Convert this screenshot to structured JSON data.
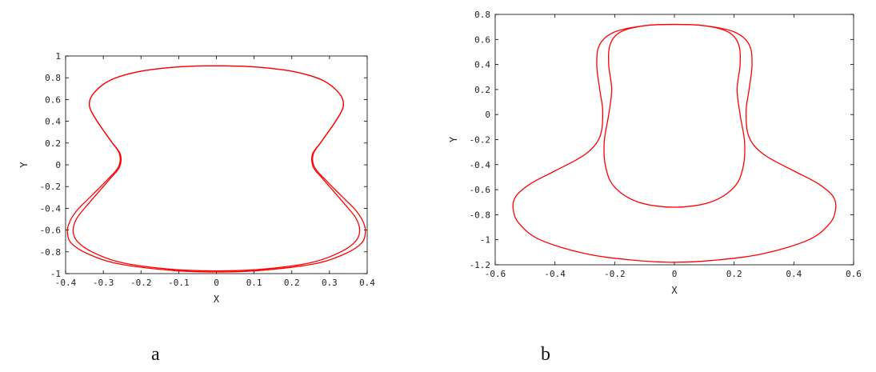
{
  "chart_data": [
    {
      "type": "line",
      "panel_label": "a",
      "xlabel": "X",
      "ylabel": "Y",
      "xlim": [
        -0.4,
        0.4
      ],
      "ylim": [
        -1,
        1
      ],
      "xticks": [
        "-0.4",
        "-0.3",
        "-0.2",
        "-0.1",
        "0",
        "0.1",
        "0.2",
        "0.3",
        "0.4"
      ],
      "yticks": [
        "1",
        "0.8",
        "0.6",
        "0.4",
        "0.2",
        "0",
        "-0.2",
        "-0.4",
        "-0.6",
        "-0.8",
        "-1"
      ],
      "grid": false,
      "line_color": "#ff0000",
      "series": [
        {
          "x": [
            0,
            0.1,
            0.2,
            0.28,
            0.325,
            0.337,
            0.32,
            0.28,
            0.255,
            0.257,
            0.28,
            0.31,
            0.34,
            0.37,
            0.38,
            0.37,
            0.33,
            0.25,
            0.12,
            0,
            -0.12,
            -0.25,
            -0.33,
            -0.37,
            -0.38,
            -0.37,
            -0.34,
            -0.31,
            -0.28,
            -0.257,
            -0.255,
            -0.28,
            -0.32,
            -0.337,
            -0.325,
            -0.28,
            -0.2,
            -0.1,
            0
          ],
          "y": [
            0.91,
            0.9,
            0.86,
            0.78,
            0.66,
            0.55,
            0.42,
            0.22,
            0.1,
            -0.02,
            -0.12,
            -0.24,
            -0.36,
            -0.49,
            -0.6,
            -0.7,
            -0.8,
            -0.9,
            -0.96,
            -0.975,
            -0.96,
            -0.9,
            -0.8,
            -0.7,
            -0.6,
            -0.49,
            -0.36,
            -0.24,
            -0.12,
            -0.02,
            0.1,
            0.22,
            0.42,
            0.55,
            0.66,
            0.78,
            0.86,
            0.9,
            0.91
          ]
        },
        {
          "x": [
            0,
            0.1,
            0.2,
            0.28,
            0.325,
            0.337,
            0.32,
            0.28,
            0.257,
            0.26,
            0.29,
            0.33,
            0.37,
            0.39,
            0.395,
            0.385,
            0.34,
            0.26,
            0.12,
            0,
            -0.12,
            -0.26,
            -0.34,
            -0.385,
            -0.395,
            -0.39,
            -0.37,
            -0.33,
            -0.29,
            -0.26,
            -0.257,
            -0.28,
            -0.32,
            -0.337,
            -0.325,
            -0.28,
            -0.2,
            -0.1,
            0
          ],
          "y": [
            0.91,
            0.9,
            0.86,
            0.78,
            0.66,
            0.55,
            0.42,
            0.22,
            0.1,
            -0.02,
            -0.14,
            -0.28,
            -0.42,
            -0.53,
            -0.62,
            -0.72,
            -0.82,
            -0.91,
            -0.97,
            -0.985,
            -0.97,
            -0.91,
            -0.82,
            -0.72,
            -0.62,
            -0.53,
            -0.42,
            -0.28,
            -0.14,
            -0.02,
            0.1,
            0.22,
            0.42,
            0.55,
            0.66,
            0.78,
            0.86,
            0.9,
            0.91
          ]
        }
      ]
    },
    {
      "type": "line",
      "panel_label": "b",
      "xlabel": "X",
      "ylabel": "Y",
      "xlim": [
        -0.6,
        0.6
      ],
      "ylim": [
        -1.2,
        0.8
      ],
      "xticks": [
        "-0.6",
        "-0.4",
        "-0.2",
        "0",
        "0.2",
        "0.4",
        "0.6"
      ],
      "yticks": [
        "0.8",
        "0.6",
        "0.4",
        "0.2",
        "0",
        "-0.2",
        "-0.4",
        "-0.6",
        "-0.8",
        "-1",
        "-1.2"
      ],
      "grid": false,
      "line_color": "#ff0000",
      "series": [
        {
          "x": [
            0,
            0.1,
            0.2,
            0.25,
            0.26,
            0.25,
            0.24,
            0.25,
            0.3,
            0.4,
            0.48,
            0.53,
            0.54,
            0.52,
            0.45,
            0.3,
            0.15,
            0,
            -0.15,
            -0.3,
            -0.45,
            -0.52,
            -0.54,
            -0.53,
            -0.48,
            -0.4,
            -0.3,
            -0.25,
            -0.24,
            -0.25,
            -0.26,
            -0.25,
            -0.2,
            -0.1,
            0
          ],
          "y": [
            0.72,
            0.71,
            0.66,
            0.56,
            0.4,
            0.2,
            0.02,
            -0.18,
            -0.32,
            -0.45,
            -0.55,
            -0.65,
            -0.75,
            -0.87,
            -1.0,
            -1.11,
            -1.16,
            -1.18,
            -1.16,
            -1.11,
            -1.0,
            -0.87,
            -0.75,
            -0.65,
            -0.55,
            -0.45,
            -0.32,
            -0.18,
            0.02,
            0.2,
            0.4,
            0.56,
            0.66,
            0.71,
            0.72
          ]
        },
        {
          "x": [
            0,
            0.1,
            0.18,
            0.215,
            0.22,
            0.21,
            0.22,
            0.235,
            0.23,
            0.2,
            0.12,
            0,
            -0.12,
            -0.2,
            -0.23,
            -0.235,
            -0.22,
            -0.21,
            -0.22,
            -0.215,
            -0.18,
            -0.1,
            0
          ],
          "y": [
            0.72,
            0.71,
            0.66,
            0.56,
            0.4,
            0.2,
            0.0,
            -0.22,
            -0.42,
            -0.58,
            -0.7,
            -0.74,
            -0.7,
            -0.58,
            -0.42,
            -0.22,
            0.0,
            0.2,
            0.4,
            0.56,
            0.66,
            0.71,
            0.72
          ]
        }
      ]
    }
  ]
}
